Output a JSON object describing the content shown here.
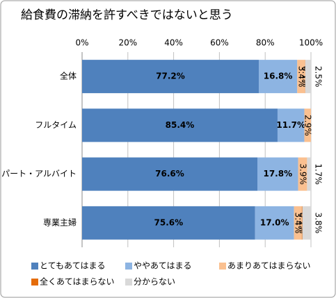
{
  "chart_data": {
    "type": "stacked-bar-horizontal",
    "title": "給食費の滞納を許すべきではないと思う",
    "categories": [
      "全体",
      "フルタイム",
      "パート・アルバイト",
      "専業主婦"
    ],
    "series": [
      {
        "name": "とてもあてはまる",
        "color": "#4f81bd",
        "values": [
          77.2,
          85.4,
          76.6,
          75.6
        ],
        "value_labels": [
          "77.2%",
          "85.4%",
          "76.6%",
          "75.6%"
        ]
      },
      {
        "name": "ややあてはまる",
        "color": "#8db4e2",
        "values": [
          16.8,
          11.7,
          17.8,
          17.0
        ],
        "value_labels": [
          "16.8%",
          "11.7%",
          "17.8%",
          "17.0%"
        ]
      },
      {
        "name": "あまりあてはまらない",
        "color": "#fac090",
        "values": [
          3.4,
          2.9,
          3.9,
          3.4
        ],
        "value_labels": [
          "3.4%",
          "2.9%",
          "3.9%",
          "3.4%"
        ]
      },
      {
        "name": "全くあてはまらない",
        "color": "#e46c0a",
        "values": [
          0.1,
          null,
          null,
          0.2
        ],
        "value_labels": [
          "0.1%",
          null,
          null,
          "0.2%"
        ]
      },
      {
        "name": "分からない",
        "color": "#d9d9d9",
        "values": [
          2.5,
          null,
          1.7,
          3.8
        ],
        "value_labels": [
          "2.5%",
          null,
          "1.7%",
          "3.8%"
        ]
      }
    ],
    "xlim": [
      0,
      100
    ],
    "xticks": [
      {
        "value": 0,
        "label": "0%"
      },
      {
        "value": 20,
        "label": "20%"
      },
      {
        "value": 40,
        "label": "40%"
      },
      {
        "value": 60,
        "label": "60%"
      },
      {
        "value": 80,
        "label": "80%"
      },
      {
        "value": 100,
        "label": "100%"
      }
    ],
    "grid": true
  }
}
